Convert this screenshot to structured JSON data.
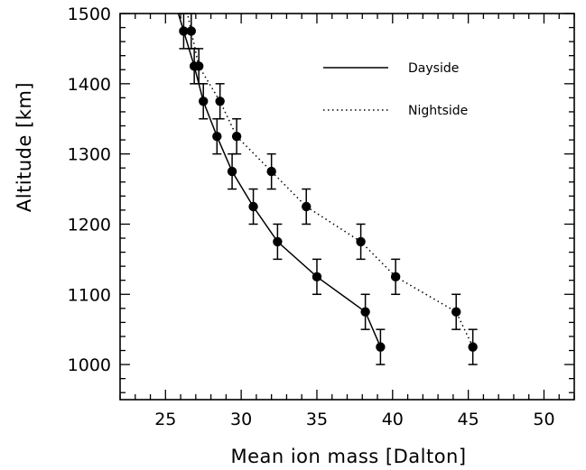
{
  "chart_data": {
    "type": "line",
    "title": "",
    "xlabel": "Mean ion mass [Dalton]",
    "ylabel": "Altitude [km]",
    "xlim": [
      22,
      52
    ],
    "ylim": [
      950,
      1500
    ],
    "xticks": [
      25,
      30,
      35,
      40,
      45,
      50
    ],
    "yticks": [
      1000,
      1100,
      1200,
      1300,
      1400,
      1500
    ],
    "grid": false,
    "legend_position": "top-right",
    "series": [
      {
        "name": "Dayside",
        "line_style": "solid",
        "points": [
          {
            "x": 26.2,
            "y": 1475,
            "err": 25
          },
          {
            "x": 26.9,
            "y": 1425,
            "err": 25
          },
          {
            "x": 27.5,
            "y": 1375,
            "err": 25
          },
          {
            "x": 28.4,
            "y": 1325,
            "err": 25
          },
          {
            "x": 29.4,
            "y": 1275,
            "err": 25
          },
          {
            "x": 30.8,
            "y": 1225,
            "err": 25
          },
          {
            "x": 32.4,
            "y": 1175,
            "err": 25
          },
          {
            "x": 35.0,
            "y": 1125,
            "err": 25
          },
          {
            "x": 38.2,
            "y": 1075,
            "err": 25
          },
          {
            "x": 39.2,
            "y": 1025,
            "err": 25
          }
        ]
      },
      {
        "name": "Nightside",
        "line_style": "dotted",
        "points": [
          {
            "x": 26.7,
            "y": 1475,
            "err": 25
          },
          {
            "x": 27.2,
            "y": 1425,
            "err": 25
          },
          {
            "x": 28.6,
            "y": 1375,
            "err": 25
          },
          {
            "x": 29.7,
            "y": 1325,
            "err": 25
          },
          {
            "x": 32.0,
            "y": 1275,
            "err": 25
          },
          {
            "x": 34.3,
            "y": 1225,
            "err": 25
          },
          {
            "x": 37.9,
            "y": 1175,
            "err": 25
          },
          {
            "x": 40.2,
            "y": 1125,
            "err": 25
          },
          {
            "x": 44.2,
            "y": 1075,
            "err": 25
          },
          {
            "x": 45.3,
            "y": 1025,
            "err": 25
          }
        ]
      }
    ]
  }
}
